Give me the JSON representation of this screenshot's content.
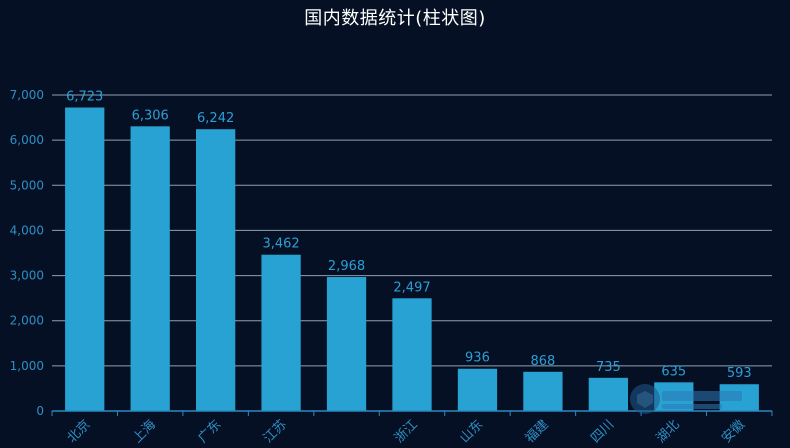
{
  "chart_data": {
    "type": "bar",
    "title": "国内数据统计(柱状图)",
    "categories": [
      "北京",
      "上海",
      "广东",
      "江苏",
      "",
      "浙江",
      "山东",
      "福建",
      "四川",
      "湖北",
      "安徽"
    ],
    "values": [
      6723,
      6306,
      6242,
      3462,
      2968,
      2497,
      936,
      868,
      735,
      635,
      593
    ],
    "data_labels": [
      "6,723",
      "6,306",
      "6,242",
      "3,462",
      "2,968",
      "2,497",
      "936",
      "868",
      "735",
      "635",
      "593"
    ],
    "yticks": [
      0,
      1000,
      2000,
      3000,
      4000,
      5000,
      6000,
      7000
    ],
    "ytick_labels": [
      "0",
      "1,000",
      "2,000",
      "3,000",
      "4,000",
      "5,000",
      "6,000",
      "7,000"
    ],
    "ylim": [
      0,
      7000
    ],
    "xlabel": "",
    "ylabel": "",
    "grid": true,
    "colors": {
      "bar": "#27a2d2",
      "label": "#2b9fd4",
      "axis_text": "#2e8fc4",
      "grid": "#8e9fb2",
      "axis": "#2a89c2",
      "background": "#061024",
      "title": "#ffffff"
    }
  }
}
